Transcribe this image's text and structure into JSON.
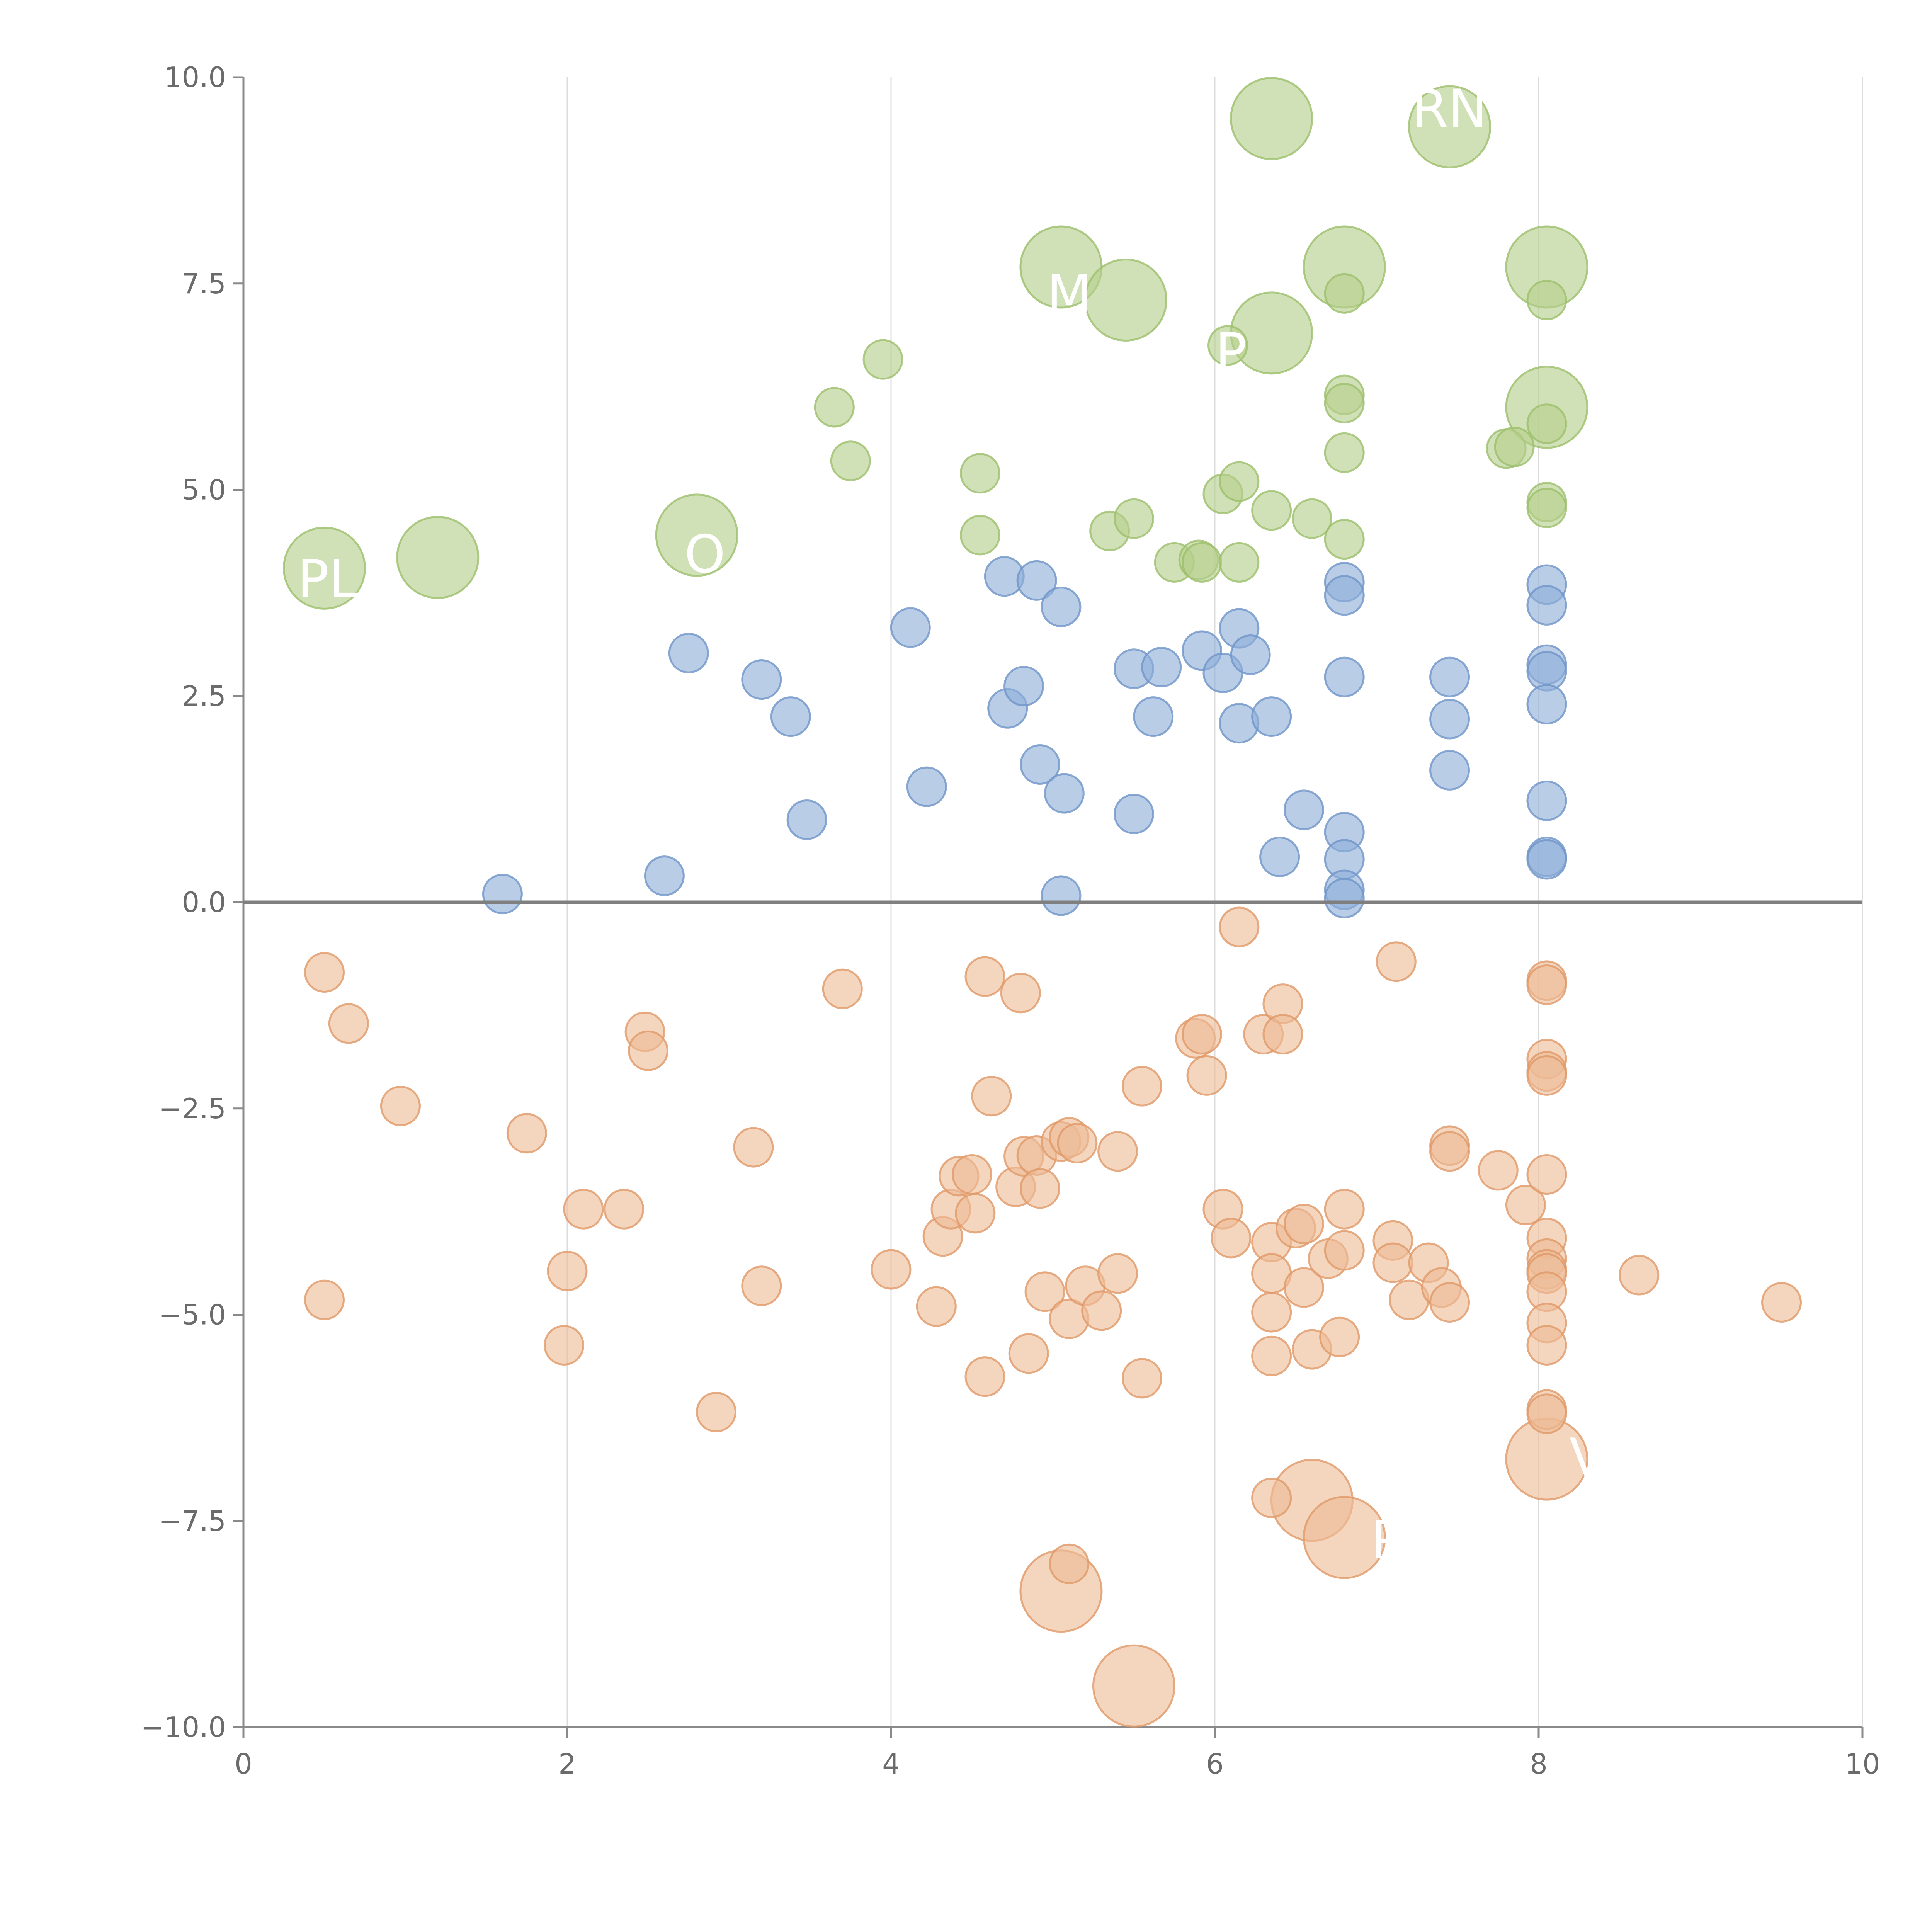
{
  "chart_data": {
    "type": "scatter",
    "title": "",
    "xlabel": "",
    "ylabel": "",
    "xlim": [
      0,
      10
    ],
    "ylim": [
      -10,
      10
    ],
    "x_ticks": [
      0,
      2,
      4,
      6,
      8,
      10
    ],
    "y_ticks": [
      10.0,
      7.5,
      5.0,
      2.5,
      0.0,
      -2.5,
      -5.0,
      -7.5,
      -10.0
    ],
    "x_tick_labels": [
      "0",
      "2",
      "4",
      "6",
      "8",
      "10"
    ],
    "y_tick_labels": [
      "10.0",
      "7.5",
      "5.0",
      "2.5",
      "0.0",
      "−2.5",
      "−5.0",
      "−7.5",
      "−10.0"
    ],
    "reference_line_y": 0,
    "grid_x": true,
    "grid_y": false,
    "legend": "none",
    "series": [
      {
        "name": "green",
        "color": "#b5cf8a",
        "stroke": "#9cbf6c",
        "points": [
          [
            0.5,
            4.05,
            2
          ],
          [
            1.2,
            4.18,
            2
          ],
          [
            2.8,
            4.45,
            2
          ],
          [
            5.05,
            7.7,
            2
          ],
          [
            5.45,
            7.3,
            2
          ],
          [
            6.35,
            6.9,
            2
          ],
          [
            6.35,
            9.5,
            2
          ],
          [
            6.8,
            7.7,
            2
          ],
          [
            7.45,
            9.4,
            2
          ],
          [
            8.05,
            7.7,
            2
          ],
          [
            8.05,
            6.0,
            2
          ],
          [
            3.65,
            6.0,
            1
          ],
          [
            3.75,
            5.35,
            1
          ],
          [
            3.95,
            6.58,
            1
          ],
          [
            4.55,
            5.2,
            1
          ],
          [
            4.55,
            4.45,
            1
          ],
          [
            5.35,
            4.5,
            1
          ],
          [
            5.5,
            4.65,
            1
          ],
          [
            5.75,
            4.12,
            1
          ],
          [
            5.9,
            4.15,
            1
          ],
          [
            5.92,
            4.12,
            1
          ],
          [
            6.05,
            4.95,
            1
          ],
          [
            6.08,
            6.75,
            1
          ],
          [
            6.15,
            5.1,
            1
          ],
          [
            6.15,
            4.12,
            1
          ],
          [
            6.35,
            4.75,
            1
          ],
          [
            6.6,
            4.65,
            1
          ],
          [
            6.8,
            7.38,
            1
          ],
          [
            6.8,
            6.15,
            1
          ],
          [
            6.8,
            6.05,
            1
          ],
          [
            6.8,
            5.45,
            1
          ],
          [
            6.8,
            4.4,
            1
          ],
          [
            7.8,
            5.5,
            1
          ],
          [
            7.85,
            5.52,
            1
          ],
          [
            8.05,
            7.3,
            1
          ],
          [
            8.05,
            5.8,
            1
          ],
          [
            8.05,
            4.85,
            1
          ],
          [
            8.05,
            4.78,
            1
          ]
        ]
      },
      {
        "name": "blue",
        "color": "#8eaed8",
        "stroke": "#6f95c8",
        "points": [
          [
            1.6,
            0.1,
            1
          ],
          [
            2.6,
            0.32,
            1
          ],
          [
            2.75,
            3.02,
            1
          ],
          [
            3.2,
            2.7,
            1
          ],
          [
            3.38,
            2.25,
            1
          ],
          [
            3.48,
            1.0,
            1
          ],
          [
            4.12,
            3.33,
            1
          ],
          [
            4.22,
            1.4,
            1
          ],
          [
            4.7,
            3.95,
            1
          ],
          [
            4.72,
            2.35,
            1
          ],
          [
            4.82,
            2.62,
            1
          ],
          [
            4.9,
            3.9,
            1
          ],
          [
            4.92,
            1.67,
            1
          ],
          [
            5.05,
            3.58,
            1
          ],
          [
            5.07,
            1.32,
            1
          ],
          [
            5.05,
            0.08,
            1
          ],
          [
            5.5,
            2.83,
            1
          ],
          [
            5.5,
            1.07,
            1
          ],
          [
            5.62,
            2.25,
            1
          ],
          [
            5.67,
            2.85,
            1
          ],
          [
            5.92,
            3.05,
            1
          ],
          [
            6.05,
            2.78,
            1
          ],
          [
            6.15,
            3.32,
            1
          ],
          [
            6.15,
            2.17,
            1
          ],
          [
            6.22,
            3.0,
            1
          ],
          [
            6.35,
            2.25,
            1
          ],
          [
            6.4,
            0.55,
            1
          ],
          [
            6.55,
            1.12,
            1
          ],
          [
            6.8,
            3.88,
            1
          ],
          [
            6.8,
            3.72,
            1
          ],
          [
            6.8,
            2.73,
            1
          ],
          [
            6.8,
            0.85,
            1
          ],
          [
            6.8,
            0.52,
            1
          ],
          [
            6.8,
            0.15,
            1
          ],
          [
            6.8,
            0.05,
            1
          ],
          [
            7.45,
            2.73,
            1
          ],
          [
            7.45,
            2.22,
            1
          ],
          [
            7.45,
            1.6,
            1
          ],
          [
            8.05,
            3.85,
            1
          ],
          [
            8.05,
            3.6,
            1
          ],
          [
            8.05,
            2.88,
            1
          ],
          [
            8.05,
            2.8,
            1
          ],
          [
            8.05,
            2.4,
            1
          ],
          [
            8.05,
            1.23,
            1
          ],
          [
            8.05,
            0.55,
            1
          ],
          [
            8.05,
            0.52,
            1
          ]
        ]
      },
      {
        "name": "orange",
        "color": "#eebb96",
        "stroke": "#e09868",
        "points": [
          [
            5.05,
            -8.35,
            2
          ],
          [
            5.5,
            -9.5,
            2
          ],
          [
            6.6,
            -7.25,
            2
          ],
          [
            6.8,
            -7.7,
            2
          ],
          [
            8.05,
            -6.75,
            2
          ],
          [
            0.5,
            -0.85,
            1
          ],
          [
            0.65,
            -1.47,
            1
          ],
          [
            0.5,
            -4.82,
            1
          ],
          [
            0.97,
            -2.47,
            1
          ],
          [
            1.75,
            -2.8,
            1
          ],
          [
            1.98,
            -5.37,
            1
          ],
          [
            2.0,
            -4.47,
            1
          ],
          [
            2.1,
            -3.72,
            1
          ],
          [
            2.35,
            -3.72,
            1
          ],
          [
            2.48,
            -1.57,
            1
          ],
          [
            2.5,
            -1.8,
            1
          ],
          [
            2.92,
            -6.18,
            1
          ],
          [
            3.15,
            -2.97,
            1
          ],
          [
            3.2,
            -4.65,
            1
          ],
          [
            3.7,
            -1.05,
            1
          ],
          [
            4.0,
            -4.45,
            1
          ],
          [
            4.28,
            -4.9,
            1
          ],
          [
            4.32,
            -4.05,
            1
          ],
          [
            4.37,
            -3.72,
            1
          ],
          [
            4.42,
            -3.32,
            1
          ],
          [
            4.5,
            -3.3,
            1
          ],
          [
            4.52,
            -3.77,
            1
          ],
          [
            4.58,
            -0.9,
            1
          ],
          [
            4.58,
            -5.75,
            1
          ],
          [
            4.62,
            -2.35,
            1
          ],
          [
            4.77,
            -3.45,
            1
          ],
          [
            4.8,
            -1.1,
            1
          ],
          [
            4.82,
            -3.08,
            1
          ],
          [
            4.85,
            -5.47,
            1
          ],
          [
            4.9,
            -3.07,
            1
          ],
          [
            4.92,
            -3.47,
            1
          ],
          [
            4.95,
            -4.72,
            1
          ],
          [
            5.05,
            -2.9,
            1
          ],
          [
            5.1,
            -2.85,
            1
          ],
          [
            5.1,
            -5.05,
            1
          ],
          [
            5.15,
            -2.92,
            1
          ],
          [
            5.2,
            -4.65,
            1
          ],
          [
            5.3,
            -4.95,
            1
          ],
          [
            5.4,
            -3.02,
            1
          ],
          [
            5.4,
            -4.5,
            1
          ],
          [
            5.55,
            -2.23,
            1
          ],
          [
            5.55,
            -5.77,
            1
          ],
          [
            5.1,
            -8.02,
            1
          ],
          [
            5.88,
            -1.65,
            1
          ],
          [
            5.92,
            -1.6,
            1
          ],
          [
            5.95,
            -2.1,
            1
          ],
          [
            6.05,
            -3.72,
            1
          ],
          [
            6.1,
            -4.07,
            1
          ],
          [
            6.15,
            -0.3,
            1
          ],
          [
            6.3,
            -1.6,
            1
          ],
          [
            6.35,
            -4.12,
            1
          ],
          [
            6.35,
            -4.5,
            1
          ],
          [
            6.35,
            -4.97,
            1
          ],
          [
            6.35,
            -5.5,
            1
          ],
          [
            6.35,
            -7.22,
            1
          ],
          [
            6.42,
            -1.23,
            1
          ],
          [
            6.42,
            -1.6,
            1
          ],
          [
            6.5,
            -3.95,
            1
          ],
          [
            6.55,
            -3.9,
            1
          ],
          [
            6.55,
            -4.67,
            1
          ],
          [
            6.6,
            -5.42,
            1
          ],
          [
            6.7,
            -4.32,
            1
          ],
          [
            6.77,
            -5.27,
            1
          ],
          [
            6.8,
            -3.72,
            1
          ],
          [
            6.8,
            -4.22,
            1
          ],
          [
            7.12,
            -0.72,
            1
          ],
          [
            7.1,
            -4.1,
            1
          ],
          [
            7.1,
            -4.37,
            1
          ],
          [
            7.2,
            -4.82,
            1
          ],
          [
            7.32,
            -4.37,
            1
          ],
          [
            7.4,
            -4.67,
            1
          ],
          [
            7.45,
            -2.95,
            1
          ],
          [
            7.45,
            -3.02,
            1
          ],
          [
            7.45,
            -4.85,
            1
          ],
          [
            7.75,
            -3.25,
            1
          ],
          [
            7.92,
            -3.67,
            1
          ],
          [
            8.05,
            -0.95,
            1
          ],
          [
            8.05,
            -1.0,
            1
          ],
          [
            8.05,
            -1.9,
            1
          ],
          [
            8.05,
            -2.05,
            1
          ],
          [
            8.05,
            -2.1,
            1
          ],
          [
            8.05,
            -3.3,
            1
          ],
          [
            8.05,
            -4.07,
            1
          ],
          [
            8.05,
            -4.32,
            1
          ],
          [
            8.05,
            -4.45,
            1
          ],
          [
            8.05,
            -4.5,
            1
          ],
          [
            8.05,
            -4.72,
            1
          ],
          [
            8.05,
            -5.1,
            1
          ],
          [
            8.05,
            -5.37,
            1
          ],
          [
            8.05,
            -6.15,
            1
          ],
          [
            8.05,
            -6.2,
            1
          ],
          [
            8.62,
            -4.52,
            1
          ],
          [
            9.5,
            -4.85,
            1
          ]
        ]
      }
    ],
    "annotations": [
      {
        "text": "RN",
        "x": 7.45,
        "y": 9.4
      },
      {
        "text": "M",
        "x": 5.1,
        "y": 7.15
      },
      {
        "text": "P",
        "x": 6.1,
        "y": 6.45
      },
      {
        "text": "PL",
        "x": 0.52,
        "y": 3.7
      },
      {
        "text": "O",
        "x": 2.85,
        "y": 4.0
      },
      {
        "text": "PL",
        "x": 7.15,
        "y": -7.95
      },
      {
        "text": "V",
        "x": 8.3,
        "y": -6.95
      }
    ]
  }
}
